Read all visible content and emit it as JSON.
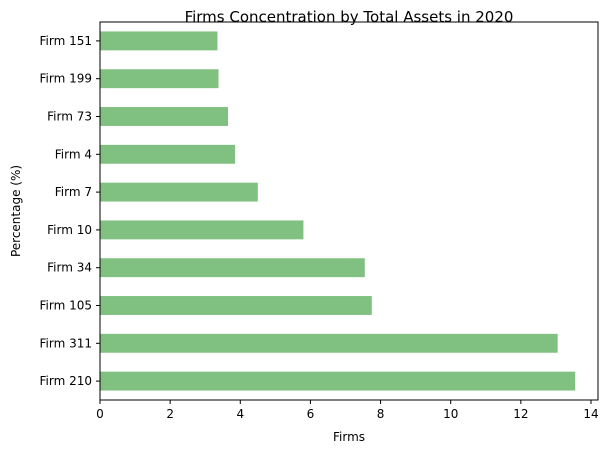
{
  "chart_data": {
    "type": "bar",
    "orientation": "horizontal",
    "title": "Firms Concentration by Total Assets in 2020",
    "xlabel": "Firms",
    "ylabel": "Percentage (%)",
    "xlim": [
      0,
      14.2
    ],
    "xticks": [
      "0",
      "2",
      "4",
      "6",
      "8",
      "10",
      "12",
      "14"
    ],
    "categories": [
      "Firm 210",
      "Firm 311",
      "Firm 105",
      "Firm 34",
      "Firm 10",
      "Firm 7",
      "Firm 4",
      "Firm 73",
      "Firm 199",
      "Firm 151"
    ],
    "values": [
      13.55,
      13.05,
      7.75,
      7.55,
      5.8,
      4.5,
      3.85,
      3.65,
      3.38,
      3.35
    ],
    "bar_color": "#80c080",
    "grid": false,
    "legend": "none"
  }
}
